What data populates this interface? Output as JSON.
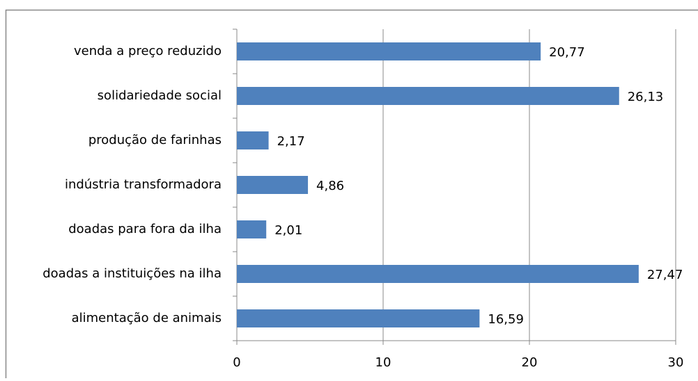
{
  "chart_data": {
    "type": "bar",
    "orientation": "horizontal",
    "categories": [
      "venda a preço reduzido",
      "solidariedade social",
      "produção de farinhas",
      "indústria transformadora",
      "doadas para fora da ilha",
      "doadas a instituições na ilha",
      "alimentação de animais"
    ],
    "values": [
      20.77,
      26.13,
      2.17,
      4.86,
      2.01,
      27.47,
      16.59
    ],
    "value_labels": [
      "20,77",
      "26,13",
      "2,17",
      "4,86",
      "2,01",
      "27,47",
      "16,59"
    ],
    "color": "#4f81bd",
    "xlim": [
      0,
      30
    ],
    "xticks": [
      0,
      10,
      20,
      30
    ],
    "grid": true
  }
}
